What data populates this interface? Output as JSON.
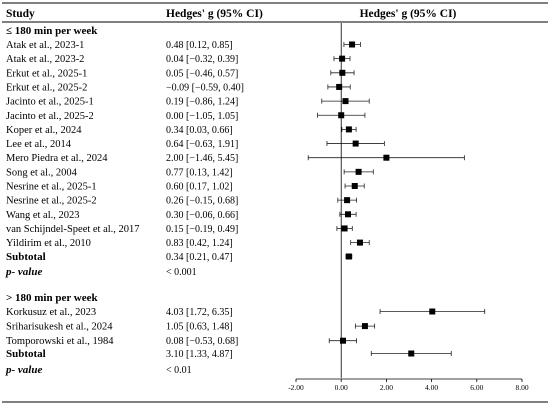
{
  "header": {
    "study": "Study",
    "effect": "Hedges' g (95% CI)",
    "plot": "Hedges' g (95% CI)"
  },
  "chart_data": {
    "type": "forest",
    "xlim": [
      -2.0,
      8.0
    ],
    "xticks": [
      -2.0,
      0.0,
      2.0,
      4.0,
      6.0,
      8.0
    ],
    "xtick_labels": [
      "-2.00",
      "0.00",
      "2.00",
      "4.00",
      "6.00",
      "8.00"
    ],
    "groups": [
      {
        "label": "≤ 180 min per week",
        "studies": [
          {
            "name": "Atak et al., 2023-1",
            "g": 0.48,
            "lo": 0.12,
            "hi": 0.85,
            "ci": "0.48 [0.12, 0.85]"
          },
          {
            "name": "Atak et al., 2023-2",
            "g": 0.04,
            "lo": -0.32,
            "hi": 0.39,
            "ci": "0.04 [−0.32, 0.39]"
          },
          {
            "name": "Erkut et al., 2025-1",
            "g": 0.05,
            "lo": -0.46,
            "hi": 0.57,
            "ci": "0.05 [−0.46, 0.57]"
          },
          {
            "name": "Erkut et al., 2025-2",
            "g": -0.09,
            "lo": -0.59,
            "hi": 0.4,
            "ci": "−0.09 [−0.59, 0.40]"
          },
          {
            "name": "Jacinto et al., 2025-1",
            "g": 0.19,
            "lo": -0.86,
            "hi": 1.24,
            "ci": "0.19 [−0.86, 1.24]"
          },
          {
            "name": "Jacinto et al., 2025-2",
            "g": 0.0,
            "lo": -1.05,
            "hi": 1.05,
            "ci": "0.00 [−1.05, 1.05]"
          },
          {
            "name": "Koper et al., 2024",
            "g": 0.34,
            "lo": 0.03,
            "hi": 0.66,
            "ci": "0.34 [0.03, 0.66]"
          },
          {
            "name": "Lee et al., 2014",
            "g": 0.64,
            "lo": -0.63,
            "hi": 1.91,
            "ci": "0.64 [−0.63, 1.91]"
          },
          {
            "name": "Mero Piedra et al., 2024",
            "g": 2.0,
            "lo": -1.46,
            "hi": 5.45,
            "ci": "2.00 [−1.46, 5.45]"
          },
          {
            "name": "Song et al., 2004",
            "g": 0.77,
            "lo": 0.13,
            "hi": 1.42,
            "ci": "0.77 [0.13, 1.42]"
          },
          {
            "name": "Nesrine et al., 2025-1",
            "g": 0.6,
            "lo": 0.17,
            "hi": 1.02,
            "ci": "0.60 [0.17, 1.02]"
          },
          {
            "name": "Nesrine et al., 2025-2",
            "g": 0.26,
            "lo": -0.15,
            "hi": 0.68,
            "ci": "0.26 [−0.15, 0.68]"
          },
          {
            "name": "Wang et al., 2023",
            "g": 0.3,
            "lo": -0.06,
            "hi": 0.66,
            "ci": "0.30 [−0.06, 0.66]"
          },
          {
            "name": "van Schijndel-Speet et al., 2017",
            "g": 0.15,
            "lo": -0.19,
            "hi": 0.49,
            "ci": "0.15 [−0.19, 0.49]"
          },
          {
            "name": "Yildirim et al., 2010",
            "g": 0.83,
            "lo": 0.42,
            "hi": 1.24,
            "ci": "0.83 [0.42, 1.24]"
          }
        ],
        "subtotal": {
          "name": "Subtotal",
          "g": 0.34,
          "lo": 0.21,
          "hi": 0.47,
          "ci": "0.34 [0.21, 0.47]"
        },
        "pvalue": {
          "label": "p- value",
          "value": "< 0.001"
        }
      },
      {
        "label": "> 180 min per week",
        "studies": [
          {
            "name": "Korkusuz et al., 2023",
            "g": 4.03,
            "lo": 1.72,
            "hi": 6.35,
            "ci": "4.03 [1.72, 6.35]"
          },
          {
            "name": "Sriharisukesh et al., 2024",
            "g": 1.05,
            "lo": 0.63,
            "hi": 1.48,
            "ci": "1.05 [0.63, 1.48]"
          },
          {
            "name": "Tomporowski et al., 1984",
            "g": 0.08,
            "lo": -0.53,
            "hi": 0.68,
            "ci": "0.08 [−0.53, 0.68]"
          }
        ],
        "subtotal": {
          "name": "Subtotal",
          "g": 3.1,
          "lo": 1.33,
          "hi": 4.87,
          "ci": "3.10 [1.33, 4.87]"
        },
        "pvalue": {
          "label": "p- value",
          "value": "< 0.01"
        }
      }
    ]
  }
}
